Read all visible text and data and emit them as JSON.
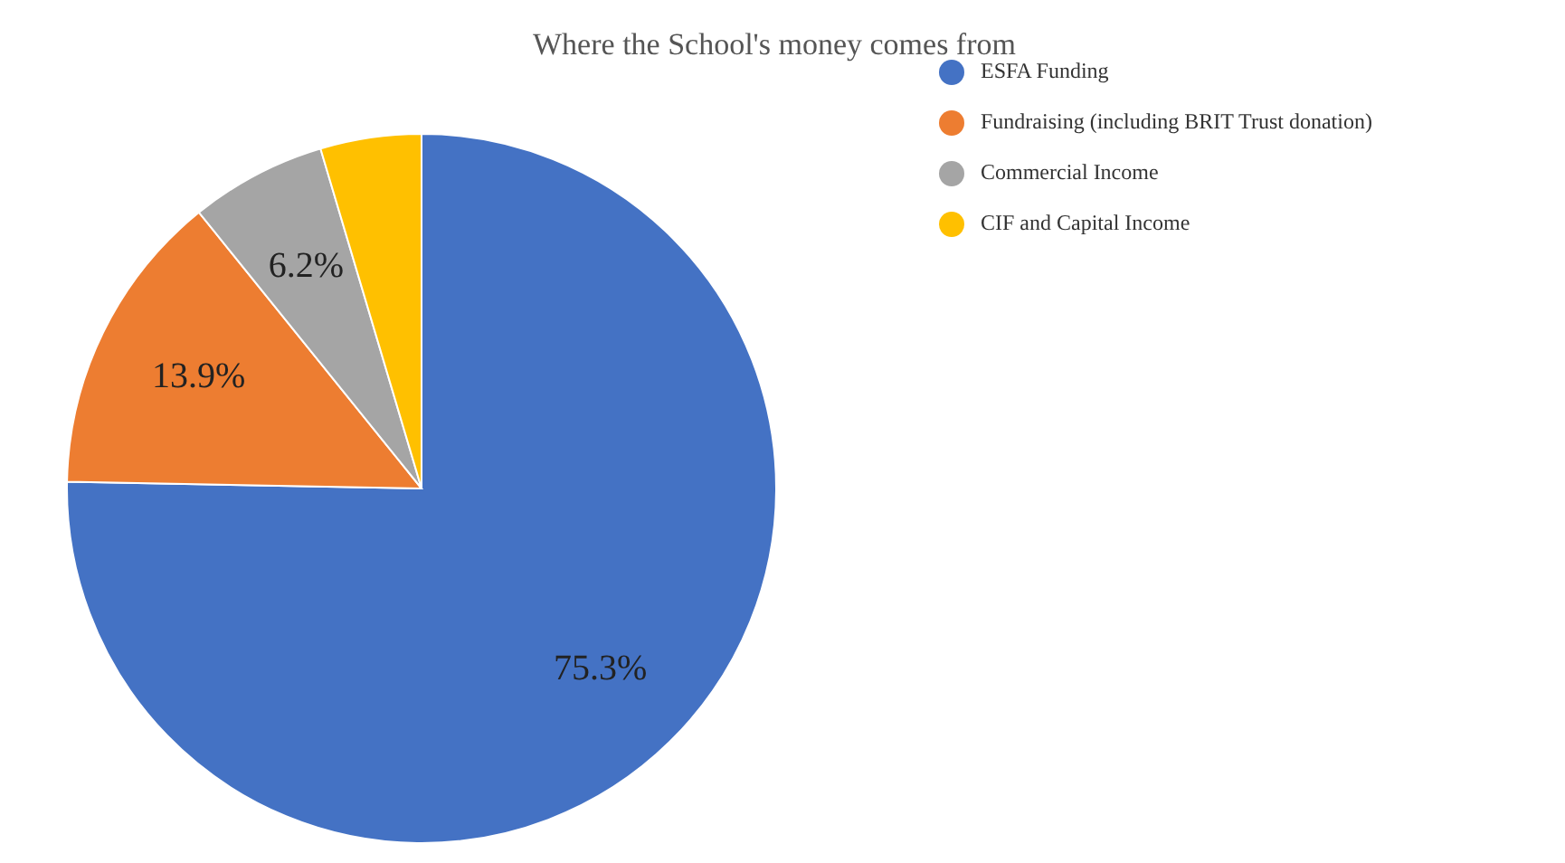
{
  "chart_data": {
    "type": "pie",
    "title": "Where the School's money comes from",
    "categories": [
      "ESFA Funding",
      "Fundraising (including BRIT Trust donation)",
      "Commercial Income",
      "CIF and Capital Income"
    ],
    "values": [
      75.3,
      13.9,
      6.2,
      4.6
    ],
    "value_labels": [
      "75.3%",
      "13.9%",
      "6.2%",
      null
    ],
    "colors": [
      "#4472c4",
      "#ed7d31",
      "#a5a5a5",
      "#ffc000"
    ],
    "legend": "right"
  }
}
